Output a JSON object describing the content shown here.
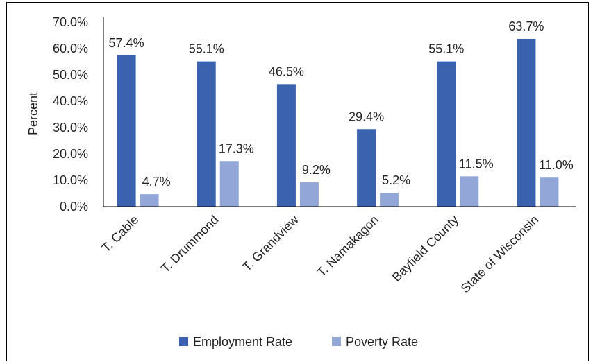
{
  "chart_data": {
    "type": "bar",
    "ylabel": "Percent",
    "ylim": [
      0,
      70
    ],
    "yticks": [
      "0.0%",
      "10.0%",
      "20.0%",
      "30.0%",
      "40.0%",
      "50.0%",
      "60.0%",
      "70.0%"
    ],
    "categories": [
      "T. Cable",
      "T. Drummond",
      "T. Grandview",
      "T. Namakagon",
      "Bayfield County",
      "State of Wisconsin"
    ],
    "series": [
      {
        "name": "Employment Rate",
        "color": "#3A62AF",
        "values": [
          57.4,
          55.1,
          46.5,
          29.4,
          55.1,
          63.7
        ],
        "labels": [
          "57.4%",
          "55.1%",
          "46.5%",
          "29.4%",
          "55.1%",
          "63.7%"
        ]
      },
      {
        "name": "Poverty Rate",
        "color": "#92A6D8",
        "values": [
          4.7,
          17.3,
          9.2,
          5.2,
          11.5,
          11.0
        ],
        "labels": [
          "4.7%",
          "17.3%",
          "9.2%",
          "5.2%",
          "11.5%",
          "11.0%"
        ]
      }
    ],
    "legend_position": "bottom",
    "grid": false
  }
}
